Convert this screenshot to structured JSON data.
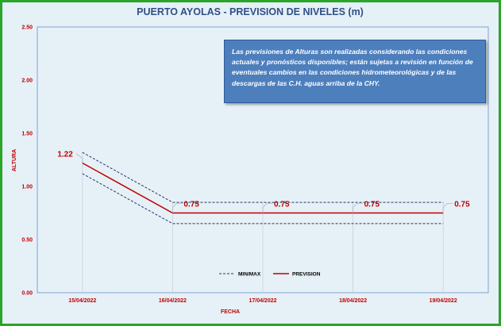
{
  "chart_data": {
    "type": "line",
    "title": "PUERTO AYOLAS - PREVISION DE NIVELES (m)",
    "xlabel": "FECHA",
    "ylabel": "ALTURA",
    "ylim": [
      0,
      2.5
    ],
    "yticks": [
      "0.00",
      "0.50",
      "1.00",
      "1.50",
      "2.00",
      "2.50"
    ],
    "categories": [
      "15/04/2022",
      "16/04/2022",
      "17/04/2022",
      "18/04/2022",
      "19/04/2022"
    ],
    "series": [
      {
        "name": "PREVISION",
        "values": [
          1.22,
          0.75,
          0.75,
          0.75,
          0.75
        ],
        "labels": [
          "1.22",
          "0.75",
          "0.75",
          "0.75",
          "0.75"
        ],
        "color": "#c00000",
        "style": "solid"
      },
      {
        "name": "MIN/MAX",
        "role": "max",
        "values": [
          1.32,
          0.85,
          0.85,
          0.85,
          0.85
        ],
        "color": "#1f3864",
        "style": "dashed"
      },
      {
        "role": "min",
        "values": [
          1.12,
          0.65,
          0.65,
          0.65,
          0.65
        ],
        "color": "#1f3864",
        "style": "dashed"
      }
    ],
    "legend": {
      "placement": "bottom-center",
      "items": [
        "MIN/MAX",
        "PREVISION"
      ]
    },
    "annotation": "Las previsiones de Alturas son realizadas considerando las condiciones actuales y pronósticos disponibles; están sujetas a revisión en función de eventuales cambios en las condiciones hidrometeorológicas y de las descargas de las C.H. aguas arriba de la CHY.",
    "colors": {
      "frame": "#2aa52a",
      "background": "#e6f0f7",
      "plot_border": "#7da3cf",
      "box": "#4e7fbd"
    }
  }
}
